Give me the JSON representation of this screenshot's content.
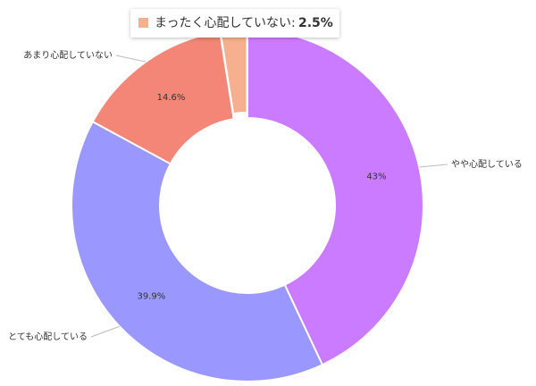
{
  "chart_data": {
    "type": "donut",
    "categories": [
      "やや心配している",
      "とても心配している",
      "あまり心配していない",
      "まったく心配していない"
    ],
    "values": [
      43,
      39.9,
      14.6,
      2.5
    ],
    "value_labels": [
      "43%",
      "39.9%",
      "14.6%",
      null
    ],
    "colors": [
      "#cb7bff",
      "#9a97ff",
      "#f38677",
      "#f6b08f"
    ],
    "tooltip": {
      "label": "まったく心配していない:",
      "value_label": "2.5%"
    }
  }
}
